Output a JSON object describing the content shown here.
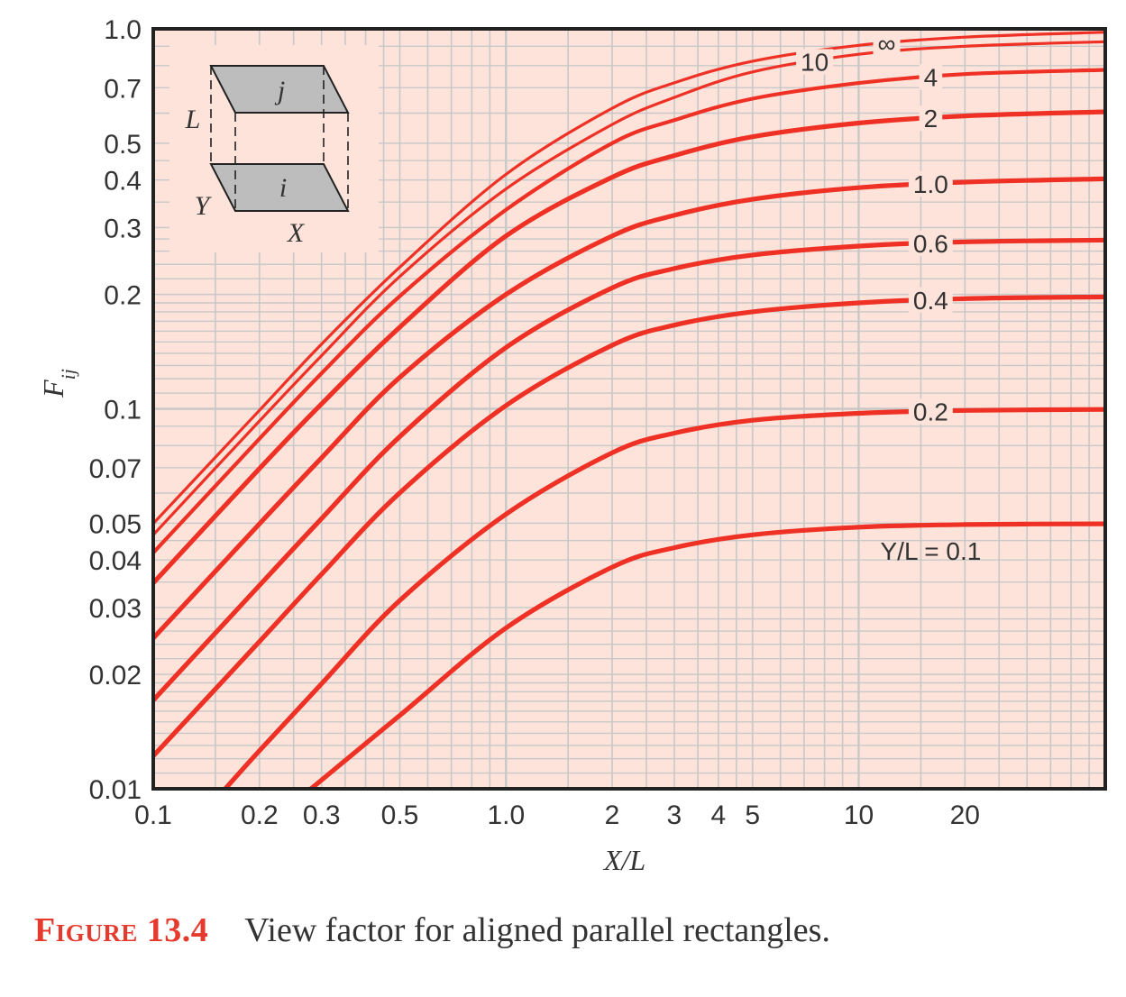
{
  "chart_data": {
    "type": "line",
    "xlabel": "X/L",
    "ylabel": "F_ij",
    "x_scale": "log",
    "y_scale": "log",
    "xlim": [
      0.1,
      50
    ],
    "ylim": [
      0.01,
      1.0
    ],
    "x_ticks": [
      {
        "value": 0.1,
        "label": "0.1"
      },
      {
        "value": 0.2,
        "label": "0.2"
      },
      {
        "value": 0.3,
        "label": "0.3"
      },
      {
        "value": 0.5,
        "label": "0.5"
      },
      {
        "value": 1.0,
        "label": "1.0"
      },
      {
        "value": 2,
        "label": "2"
      },
      {
        "value": 3,
        "label": "3"
      },
      {
        "value": 4,
        "label": "4"
      },
      {
        "value": 5,
        "label": "5"
      },
      {
        "value": 10,
        "label": "10"
      },
      {
        "value": 20,
        "label": "20"
      }
    ],
    "y_ticks": [
      {
        "value": 1.0,
        "label": "1.0"
      },
      {
        "value": 0.7,
        "label": "0.7"
      },
      {
        "value": 0.5,
        "label": "0.5"
      },
      {
        "value": 0.4,
        "label": "0.4"
      },
      {
        "value": 0.3,
        "label": "0.3"
      },
      {
        "value": 0.2,
        "label": "0.2"
      },
      {
        "value": 0.1,
        "label": "0.1"
      },
      {
        "value": 0.07,
        "label": "0.07"
      },
      {
        "value": 0.05,
        "label": "0.05"
      },
      {
        "value": 0.04,
        "label": "0.04"
      },
      {
        "value": 0.03,
        "label": "0.03"
      },
      {
        "value": 0.02,
        "label": "0.02"
      },
      {
        "value": 0.01,
        "label": "0.01"
      }
    ],
    "grid": true,
    "colors": {
      "curve": "#ee3124",
      "plot_bg": "#fde3da",
      "grid": "#c8c8c8",
      "frame": "#222222"
    },
    "series": [
      {
        "name": "Y/L = 0.1",
        "label": "Y/L = 0.1",
        "label_at_x": 16,
        "Y_over_L": 0.1,
        "points": [
          [
            0.28,
            0.01
          ],
          [
            0.5,
            0.0156
          ],
          [
            1.0,
            0.0265
          ],
          [
            2,
            0.0383
          ],
          [
            3,
            0.0431
          ],
          [
            5,
            0.0466
          ],
          [
            10,
            0.0488
          ],
          [
            20,
            0.0496
          ],
          [
            50,
            0.0498
          ]
        ]
      },
      {
        "name": "0.2",
        "label": "0.2",
        "label_at_x": 16,
        "Y_over_L": 0.2,
        "points": [
          [
            0.16,
            0.01
          ],
          [
            0.2,
            0.0126
          ],
          [
            0.3,
            0.0189
          ],
          [
            0.5,
            0.0313
          ],
          [
            1.0,
            0.0528
          ],
          [
            2,
            0.0766
          ],
          [
            3,
            0.0863
          ],
          [
            5,
            0.0933
          ],
          [
            10,
            0.0973
          ],
          [
            20,
            0.099
          ],
          [
            50,
            0.0996
          ]
        ]
      },
      {
        "name": "0.4",
        "label": "0.4",
        "label_at_x": 16,
        "Y_over_L": 0.4,
        "points": [
          [
            0.1,
            0.0122
          ],
          [
            0.2,
            0.0244
          ],
          [
            0.3,
            0.0367
          ],
          [
            0.5,
            0.0601
          ],
          [
            1.0,
            0.102
          ],
          [
            2,
            0.147
          ],
          [
            3,
            0.166
          ],
          [
            5,
            0.18
          ],
          [
            10,
            0.19
          ],
          [
            20,
            0.195
          ],
          [
            50,
            0.197
          ]
        ]
      },
      {
        "name": "0.6",
        "label": "0.6",
        "label_at_x": 16,
        "Y_over_L": 0.6,
        "points": [
          [
            0.1,
            0.0171
          ],
          [
            0.2,
            0.0343
          ],
          [
            0.3,
            0.0514
          ],
          [
            0.5,
            0.0845
          ],
          [
            1.0,
            0.145
          ],
          [
            2,
            0.208
          ],
          [
            3,
            0.234
          ],
          [
            5,
            0.254
          ],
          [
            10,
            0.268
          ],
          [
            20,
            0.275
          ],
          [
            50,
            0.278
          ]
        ]
      },
      {
        "name": "1.0",
        "label": "1.0",
        "label_at_x": 16,
        "Y_over_L": 1.0,
        "points": [
          [
            0.1,
            0.0249
          ],
          [
            0.2,
            0.0498
          ],
          [
            0.3,
            0.0743
          ],
          [
            0.5,
            0.121
          ],
          [
            1.0,
            0.2
          ],
          [
            2,
            0.285
          ],
          [
            3,
            0.323
          ],
          [
            5,
            0.356
          ],
          [
            10,
            0.382
          ],
          [
            20,
            0.395
          ],
          [
            50,
            0.403
          ]
        ]
      },
      {
        "name": "2",
        "label": "2",
        "label_at_x": 16,
        "Y_over_L": 2,
        "points": [
          [
            0.1,
            0.0348
          ],
          [
            0.2,
            0.0696
          ],
          [
            0.3,
            0.103
          ],
          [
            0.5,
            0.164
          ],
          [
            1.0,
            0.285
          ],
          [
            2,
            0.407
          ],
          [
            3,
            0.464
          ],
          [
            5,
            0.52
          ],
          [
            10,
            0.565
          ],
          [
            20,
            0.59
          ],
          [
            50,
            0.605
          ]
        ]
      },
      {
        "name": "4",
        "label": "4",
        "label_at_x": 16,
        "Y_over_L": 4,
        "points": [
          [
            0.1,
            0.0418
          ],
          [
            0.2,
            0.0834
          ],
          [
            0.3,
            0.124
          ],
          [
            0.5,
            0.198
          ],
          [
            1.0,
            0.334
          ],
          [
            2,
            0.5
          ],
          [
            3,
            0.575
          ],
          [
            5,
            0.655
          ],
          [
            10,
            0.72
          ],
          [
            20,
            0.76
          ],
          [
            50,
            0.78
          ]
        ]
      },
      {
        "name": "10",
        "label": "10",
        "label_at_x": 7.5,
        "Y_over_L": 10,
        "points": [
          [
            0.1,
            0.0466
          ],
          [
            0.2,
            0.0929
          ],
          [
            0.3,
            0.138
          ],
          [
            0.5,
            0.223
          ],
          [
            1.0,
            0.379
          ],
          [
            2,
            0.56
          ],
          [
            3,
            0.66
          ],
          [
            5,
            0.77
          ],
          [
            10,
            0.857
          ],
          [
            20,
            0.9
          ],
          [
            50,
            0.925
          ]
        ]
      },
      {
        "name": "∞",
        "label": "∞",
        "label_at_x": 12,
        "Y_over_L": "infinity",
        "points": [
          [
            0.1,
            0.0499
          ],
          [
            0.2,
            0.0991
          ],
          [
            0.3,
            0.148
          ],
          [
            0.5,
            0.236
          ],
          [
            1.0,
            0.414
          ],
          [
            2,
            0.618
          ],
          [
            3,
            0.721
          ],
          [
            5,
            0.822
          ],
          [
            10,
            0.905
          ],
          [
            20,
            0.951
          ],
          [
            50,
            0.98
          ]
        ]
      }
    ]
  },
  "caption": {
    "label": "Figure 13.4",
    "text": "View factor for aligned parallel rectangles."
  },
  "inset": {
    "surface_top": "j",
    "surface_bottom": "i",
    "dim_height": "L",
    "dim_depth": "Y",
    "dim_width": "X"
  }
}
